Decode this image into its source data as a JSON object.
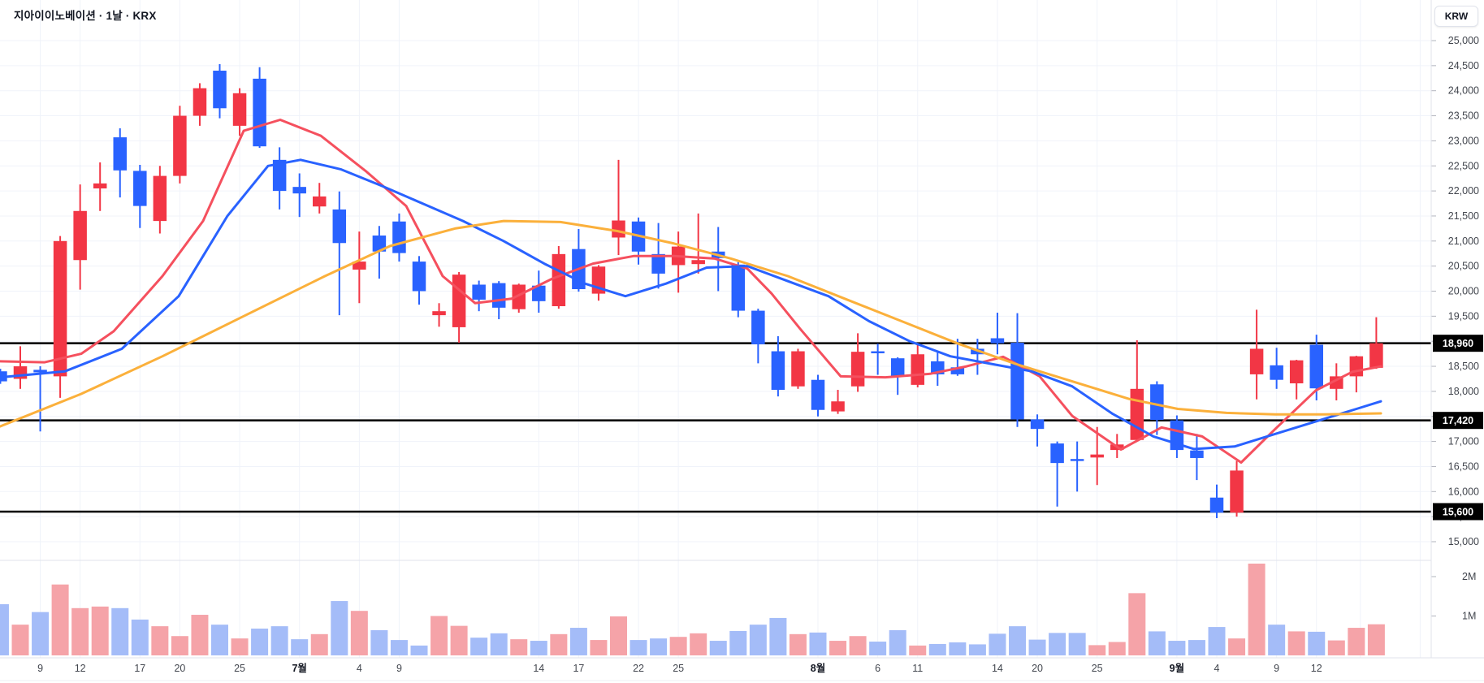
{
  "header": {
    "title": "지아이이노베이션 · 1날 · KRX",
    "symbol": "지아이이노베이션",
    "interval": "1날",
    "exchange": "KRX"
  },
  "y_axis": {
    "currency": "KRW",
    "tick_labels": [
      "25,000",
      "24,500",
      "24,000",
      "23,500",
      "23,000",
      "22,500",
      "22,000",
      "21,500",
      "21,000",
      "20,500",
      "20,000",
      "19,500",
      "19,000",
      "18,500",
      "18,000",
      "17,500",
      "17,000",
      "16,500",
      "16,000",
      "15,500",
      "15,000"
    ],
    "tick_values": [
      25000,
      24500,
      24000,
      23500,
      23000,
      22500,
      22000,
      21500,
      21000,
      20500,
      20000,
      19500,
      19000,
      18500,
      18000,
      17500,
      17000,
      16500,
      16000,
      15500,
      15000
    ]
  },
  "price_lines": [
    {
      "value": 18960,
      "label": "18,960"
    },
    {
      "value": 17420,
      "label": "17,420"
    },
    {
      "value": 15600,
      "label": "15,600"
    }
  ],
  "volume_axis": {
    "tick_labels": [
      "2M",
      "1M"
    ],
    "tick_values": [
      2000000,
      1000000
    ]
  },
  "x_axis": {
    "labels": [
      {
        "text": "9",
        "i": 2,
        "bold": false
      },
      {
        "text": "12",
        "i": 4,
        "bold": false
      },
      {
        "text": "17",
        "i": 7,
        "bold": false
      },
      {
        "text": "20",
        "i": 9,
        "bold": false
      },
      {
        "text": "25",
        "i": 12,
        "bold": false
      },
      {
        "text": "7월",
        "i": 15,
        "bold": true
      },
      {
        "text": "4",
        "i": 18,
        "bold": false
      },
      {
        "text": "9",
        "i": 20,
        "bold": false
      },
      {
        "text": "14",
        "i": 27,
        "bold": false
      },
      {
        "text": "17",
        "i": 29,
        "bold": false
      },
      {
        "text": "22",
        "i": 32,
        "bold": false
      },
      {
        "text": "25",
        "i": 34,
        "bold": false
      },
      {
        "text": "8월",
        "i": 41,
        "bold": true
      },
      {
        "text": "6",
        "i": 44,
        "bold": false
      },
      {
        "text": "11",
        "i": 46,
        "bold": false
      },
      {
        "text": "14",
        "i": 50,
        "bold": false
      },
      {
        "text": "20",
        "i": 52,
        "bold": false
      },
      {
        "text": "25",
        "i": 55,
        "bold": false
      },
      {
        "text": "9월",
        "i": 59,
        "bold": true
      },
      {
        "text": "4",
        "i": 61,
        "bold": false
      },
      {
        "text": "9",
        "i": 64,
        "bold": false
      },
      {
        "text": "12",
        "i": 66,
        "bold": false
      }
    ],
    "extra_gridlines_i": [
      68.2,
      71.2
    ]
  },
  "colors": {
    "up": "#f23645",
    "down": "#2962ff",
    "vol_up": "#f5a3a8",
    "vol_down": "#a4bcf8",
    "ma_fast": "#f5505e",
    "ma_mid": "#2962ff",
    "ma_slow": "#fbb03b",
    "grid": "#f0f3fa",
    "separator": "#e0e3eb",
    "axis_text": "#42464e",
    "price_line": "#000000",
    "badge_bg": "#000000",
    "badge_text": "#ffffff"
  },
  "chart_data": {
    "type": "candlestick",
    "title": "지아이이노베이션 · 1날 · KRX",
    "ylabel": "KRW",
    "y_range": [
      15000,
      25000
    ],
    "last_price": 18960,
    "grid": true,
    "candles_ohlcv": [
      [
        18400,
        18450,
        18150,
        18200,
        1.3
      ],
      [
        18250,
        18900,
        18050,
        18500,
        0.78
      ],
      [
        18430,
        18500,
        17200,
        18380,
        1.1
      ],
      [
        18300,
        21100,
        17870,
        21000,
        1.8
      ],
      [
        20620,
        22130,
        20030,
        21600,
        1.2
      ],
      [
        22050,
        22570,
        21600,
        22150,
        1.24
      ],
      [
        23070,
        23250,
        21870,
        22410,
        1.2
      ],
      [
        22400,
        22520,
        21260,
        21700,
        0.91
      ],
      [
        21400,
        22500,
        21150,
        22300,
        0.74
      ],
      [
        22300,
        23700,
        22150,
        23500,
        0.49
      ],
      [
        23500,
        24150,
        23300,
        24050,
        1.03
      ],
      [
        24400,
        24530,
        23450,
        23650,
        0.78
      ],
      [
        23300,
        24050,
        23100,
        23950,
        0.43
      ],
      [
        24240,
        24470,
        22860,
        22890,
        0.68
      ],
      [
        22620,
        22870,
        21630,
        22000,
        0.74
      ],
      [
        22080,
        22350,
        21480,
        21950,
        0.41
      ],
      [
        21690,
        22160,
        21550,
        21890,
        0.54
      ],
      [
        21630,
        21990,
        19520,
        20960,
        1.38
      ],
      [
        20430,
        21190,
        19760,
        20590,
        1.13
      ],
      [
        21110,
        21300,
        20250,
        20790,
        0.64
      ],
      [
        21390,
        21550,
        20590,
        20760,
        0.39
      ],
      [
        20590,
        20700,
        19730,
        20000,
        0.25
      ],
      [
        19520,
        19760,
        19290,
        19600,
        1.0
      ],
      [
        19280,
        20380,
        18970,
        20330,
        0.75
      ],
      [
        20130,
        20210,
        19600,
        19830,
        0.45
      ],
      [
        20160,
        20200,
        19440,
        19670,
        0.56
      ],
      [
        19640,
        20150,
        19570,
        20130,
        0.41
      ],
      [
        20110,
        20410,
        19570,
        19800,
        0.37
      ],
      [
        19700,
        20900,
        19650,
        20740,
        0.54
      ],
      [
        20840,
        21240,
        19990,
        20040,
        0.7
      ],
      [
        19950,
        20520,
        19810,
        20490,
        0.39
      ],
      [
        21070,
        22620,
        20720,
        21410,
        0.99
      ],
      [
        21390,
        21470,
        20530,
        20790,
        0.39
      ],
      [
        20740,
        21360,
        20050,
        20350,
        0.43
      ],
      [
        20520,
        21190,
        19970,
        20890,
        0.47
      ],
      [
        20540,
        21550,
        20350,
        20620,
        0.56
      ],
      [
        20790,
        21280,
        20000,
        20660,
        0.37
      ],
      [
        20530,
        20580,
        19480,
        19610,
        0.62
      ],
      [
        19610,
        19650,
        18560,
        18940,
        0.78
      ],
      [
        18800,
        19100,
        17900,
        18030,
        0.95
      ],
      [
        18100,
        18850,
        18050,
        18800,
        0.54
      ],
      [
        18230,
        18330,
        17500,
        17630,
        0.58
      ],
      [
        17600,
        18030,
        17550,
        17800,
        0.37
      ],
      [
        18100,
        19160,
        17990,
        18790,
        0.49
      ],
      [
        18800,
        18950,
        18330,
        18760,
        0.35
      ],
      [
        18660,
        18680,
        17930,
        18300,
        0.64
      ],
      [
        18130,
        18960,
        18080,
        18740,
        0.25
      ],
      [
        18600,
        18790,
        18110,
        18340,
        0.29
      ],
      [
        18480,
        19050,
        18310,
        18340,
        0.33
      ],
      [
        18850,
        19050,
        18330,
        18740,
        0.28
      ],
      [
        19060,
        19570,
        18740,
        18960,
        0.55
      ],
      [
        18970,
        19560,
        17290,
        17440,
        0.74
      ],
      [
        17440,
        17540,
        16900,
        17250,
        0.4
      ],
      [
        16960,
        17000,
        15700,
        16570,
        0.57
      ],
      [
        16650,
        17000,
        16000,
        16610,
        0.57
      ],
      [
        16680,
        17290,
        16130,
        16740,
        0.26
      ],
      [
        16830,
        17150,
        16670,
        16940,
        0.34
      ],
      [
        17030,
        19020,
        17000,
        18050,
        1.58
      ],
      [
        18140,
        18200,
        17130,
        17430,
        0.61
      ],
      [
        17420,
        17520,
        16670,
        16830,
        0.37
      ],
      [
        16820,
        17150,
        16230,
        16670,
        0.39
      ],
      [
        15880,
        16140,
        15470,
        15580,
        0.72
      ],
      [
        15580,
        16610,
        15500,
        16420,
        0.43
      ],
      [
        18340,
        19630,
        17840,
        18850,
        2.33
      ],
      [
        18520,
        18870,
        18050,
        18230,
        0.78
      ],
      [
        18160,
        18630,
        17840,
        18620,
        0.61
      ],
      [
        18930,
        19130,
        17820,
        18060,
        0.6
      ],
      [
        18050,
        18560,
        17820,
        18300,
        0.38
      ],
      [
        18300,
        18710,
        17980,
        18700,
        0.7
      ],
      [
        18470,
        19480,
        18450,
        18960,
        0.79
      ]
    ],
    "volume_unit": "M",
    "moving_averages": [
      {
        "name": "ma-fast-red",
        "points": [
          [
            0,
            18600
          ],
          [
            55,
            18580
          ],
          [
            100,
            18750
          ],
          [
            140,
            19200
          ],
          [
            200,
            20300
          ],
          [
            250,
            21400
          ],
          [
            300,
            23200
          ],
          [
            345,
            23420
          ],
          [
            395,
            23100
          ],
          [
            450,
            22400
          ],
          [
            500,
            21700
          ],
          [
            545,
            20300
          ],
          [
            585,
            19760
          ],
          [
            630,
            19850
          ],
          [
            680,
            20250
          ],
          [
            730,
            20550
          ],
          [
            780,
            20700
          ],
          [
            830,
            20700
          ],
          [
            880,
            20650
          ],
          [
            920,
            20450
          ],
          [
            950,
            19950
          ],
          [
            985,
            19250
          ],
          [
            1035,
            18300
          ],
          [
            1090,
            18280
          ],
          [
            1145,
            18350
          ],
          [
            1190,
            18500
          ],
          [
            1235,
            18690
          ],
          [
            1280,
            18300
          ],
          [
            1320,
            17510
          ],
          [
            1380,
            16840
          ],
          [
            1430,
            17280
          ],
          [
            1480,
            17100
          ],
          [
            1528,
            16580
          ],
          [
            1570,
            17250
          ],
          [
            1620,
            18020
          ],
          [
            1665,
            18390
          ],
          [
            1700,
            18500
          ]
        ]
      },
      {
        "name": "ma-mid-blue",
        "points": [
          [
            0,
            18280
          ],
          [
            80,
            18400
          ],
          [
            150,
            18850
          ],
          [
            220,
            19900
          ],
          [
            280,
            21500
          ],
          [
            330,
            22500
          ],
          [
            370,
            22620
          ],
          [
            420,
            22430
          ],
          [
            470,
            22100
          ],
          [
            520,
            21750
          ],
          [
            570,
            21400
          ],
          [
            620,
            21000
          ],
          [
            670,
            20550
          ],
          [
            720,
            20150
          ],
          [
            770,
            19900
          ],
          [
            820,
            20150
          ],
          [
            870,
            20470
          ],
          [
            920,
            20500
          ],
          [
            970,
            20200
          ],
          [
            1020,
            19900
          ],
          [
            1070,
            19400
          ],
          [
            1120,
            19000
          ],
          [
            1170,
            18700
          ],
          [
            1220,
            18550
          ],
          [
            1270,
            18400
          ],
          [
            1320,
            18100
          ],
          [
            1370,
            17550
          ],
          [
            1420,
            17100
          ],
          [
            1470,
            16850
          ],
          [
            1520,
            16900
          ],
          [
            1570,
            17150
          ],
          [
            1620,
            17400
          ],
          [
            1670,
            17650
          ],
          [
            1700,
            17800
          ]
        ]
      },
      {
        "name": "ma-slow-yellow",
        "points": [
          [
            0,
            17300
          ],
          [
            100,
            17950
          ],
          [
            200,
            18700
          ],
          [
            300,
            19500
          ],
          [
            400,
            20300
          ],
          [
            480,
            20900
          ],
          [
            560,
            21250
          ],
          [
            620,
            21400
          ],
          [
            690,
            21380
          ],
          [
            760,
            21200
          ],
          [
            830,
            20950
          ],
          [
            900,
            20650
          ],
          [
            970,
            20300
          ],
          [
            1040,
            19850
          ],
          [
            1110,
            19400
          ],
          [
            1180,
            18950
          ],
          [
            1250,
            18550
          ],
          [
            1320,
            18200
          ],
          [
            1390,
            17850
          ],
          [
            1450,
            17650
          ],
          [
            1510,
            17570
          ],
          [
            1570,
            17540
          ],
          [
            1630,
            17540
          ],
          [
            1700,
            17560
          ]
        ]
      }
    ]
  }
}
